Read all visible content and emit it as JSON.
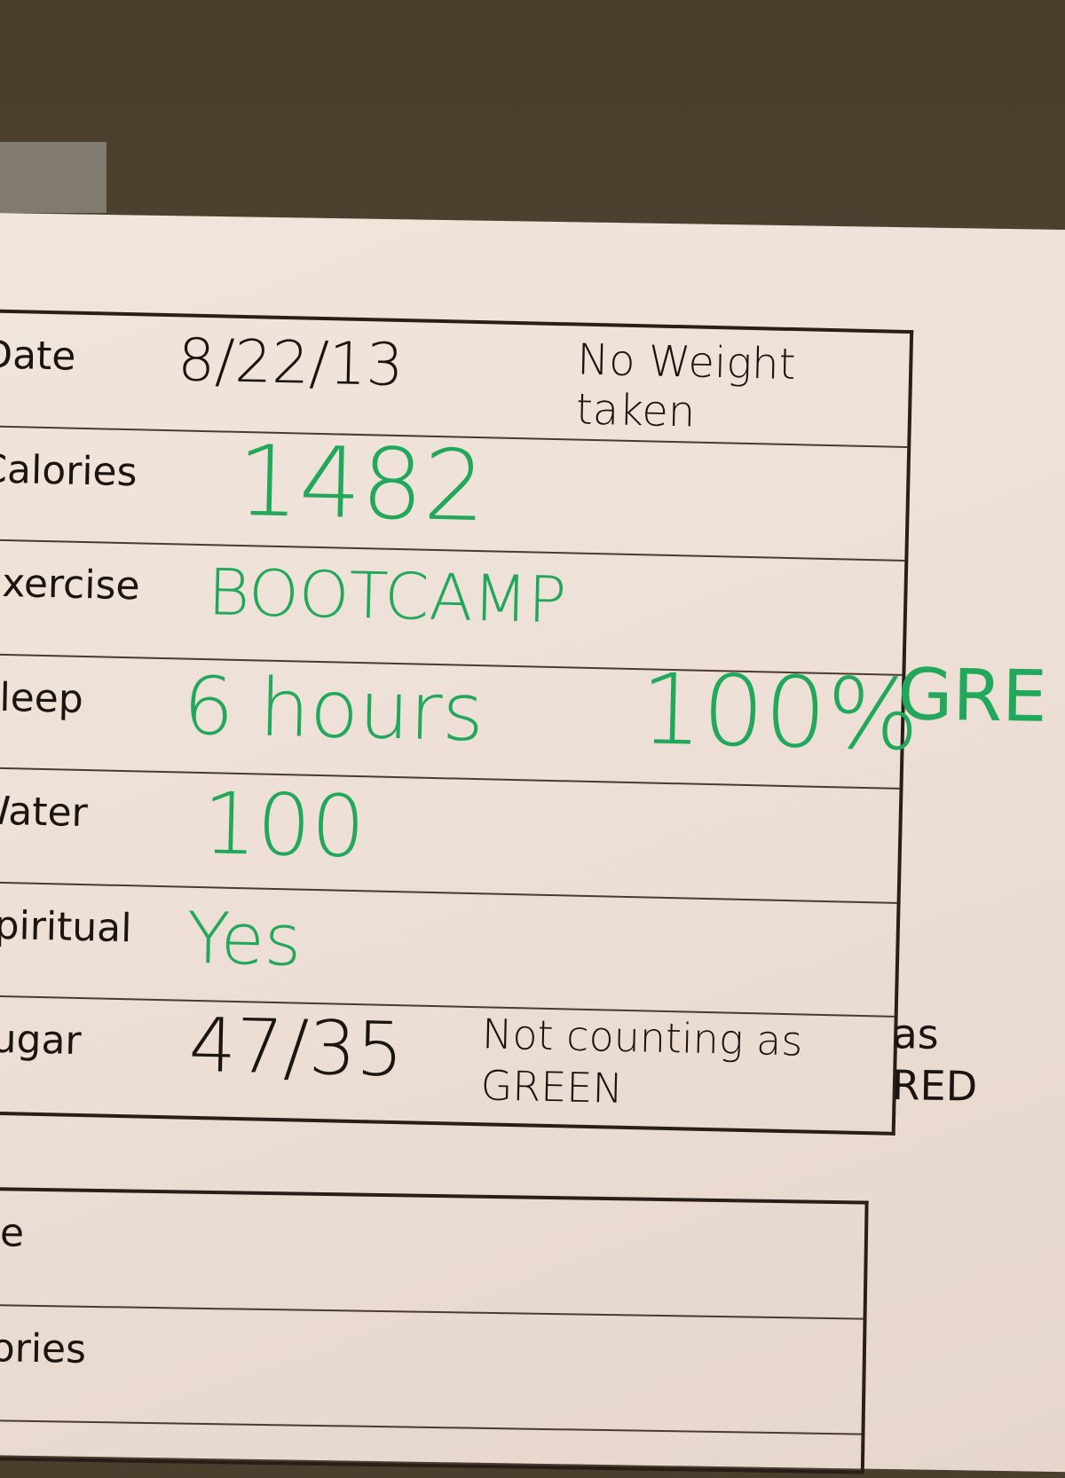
{
  "form": {
    "rows": [
      {
        "label": "Date",
        "value": "8/22/13",
        "note": "No Weight taken"
      },
      {
        "label": "Calories",
        "value": "1482"
      },
      {
        "label": "Exercise",
        "value": "BOOTCAMP"
      },
      {
        "label": "Sleep",
        "value": "6 hours",
        "note": "100%"
      },
      {
        "label": "Water",
        "value": "100"
      },
      {
        "label": "Spiritual",
        "value": "Yes"
      },
      {
        "label": "Sugar",
        "value": "47/35",
        "note": "Not counting as GREEN"
      }
    ],
    "margin_notes": {
      "green": "GRE",
      "red": "as RED"
    },
    "next_form_labels": [
      "Date",
      "Calories"
    ],
    "ink_colors": {
      "green": "#22a85a",
      "black": "#1b1512"
    }
  }
}
